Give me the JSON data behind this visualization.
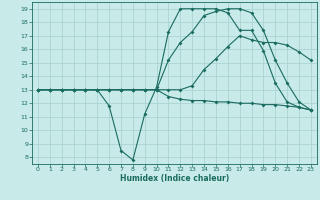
{
  "xlabel": "Humidex (Indice chaleur)",
  "bg_color": "#c8eae8",
  "grid_color": "#a8d0cc",
  "line_color": "#1a6b60",
  "xlim": [
    -0.5,
    23.5
  ],
  "ylim": [
    7.5,
    19.5
  ],
  "xticks": [
    0,
    1,
    2,
    3,
    4,
    5,
    6,
    7,
    8,
    9,
    10,
    11,
    12,
    13,
    14,
    15,
    16,
    17,
    18,
    19,
    20,
    21,
    22,
    23
  ],
  "yticks": [
    8,
    9,
    10,
    11,
    12,
    13,
    14,
    15,
    16,
    17,
    18,
    19
  ],
  "line1_x": [
    0,
    1,
    2,
    3,
    4,
    5,
    6,
    7,
    8,
    9,
    10,
    11,
    12,
    13,
    14,
    15,
    16,
    17,
    18,
    19,
    20,
    21,
    22,
    23
  ],
  "line1_y": [
    13,
    13,
    13,
    13,
    13,
    13,
    11.8,
    8.5,
    7.8,
    11.2,
    13.2,
    17.3,
    19.0,
    19.0,
    19.0,
    19.0,
    18.7,
    17.4,
    17.4,
    15.9,
    13.5,
    12.1,
    11.7,
    11.5
  ],
  "line2_x": [
    0,
    1,
    2,
    3,
    4,
    5,
    6,
    7,
    8,
    9,
    10,
    11,
    12,
    13,
    14,
    15,
    16,
    17,
    18,
    19,
    20,
    21,
    22,
    23
  ],
  "line2_y": [
    13,
    13,
    13,
    13,
    13,
    13,
    13,
    13,
    13,
    13,
    13,
    13,
    13,
    13.3,
    14.5,
    15.3,
    16.2,
    17.0,
    16.7,
    16.5,
    16.5,
    16.3,
    15.8,
    15.2
  ],
  "line3_x": [
    0,
    1,
    2,
    3,
    4,
    5,
    6,
    7,
    8,
    9,
    10,
    11,
    12,
    13,
    14,
    15,
    16,
    17,
    18,
    19,
    20,
    21,
    22,
    23
  ],
  "line3_y": [
    13,
    13,
    13,
    13,
    13,
    13,
    13,
    13,
    13,
    13,
    13,
    15.2,
    16.5,
    17.3,
    18.5,
    18.8,
    19.0,
    19.0,
    18.7,
    17.4,
    15.2,
    13.5,
    12.1,
    11.5
  ],
  "line4_x": [
    0,
    1,
    2,
    3,
    4,
    5,
    6,
    7,
    8,
    9,
    10,
    11,
    12,
    13,
    14,
    15,
    16,
    17,
    18,
    19,
    20,
    21,
    22,
    23
  ],
  "line4_y": [
    13,
    13,
    13,
    13,
    13,
    13,
    13,
    13,
    13,
    13,
    13,
    12.5,
    12.3,
    12.2,
    12.2,
    12.1,
    12.1,
    12.0,
    12.0,
    11.9,
    11.9,
    11.8,
    11.7,
    11.5
  ]
}
